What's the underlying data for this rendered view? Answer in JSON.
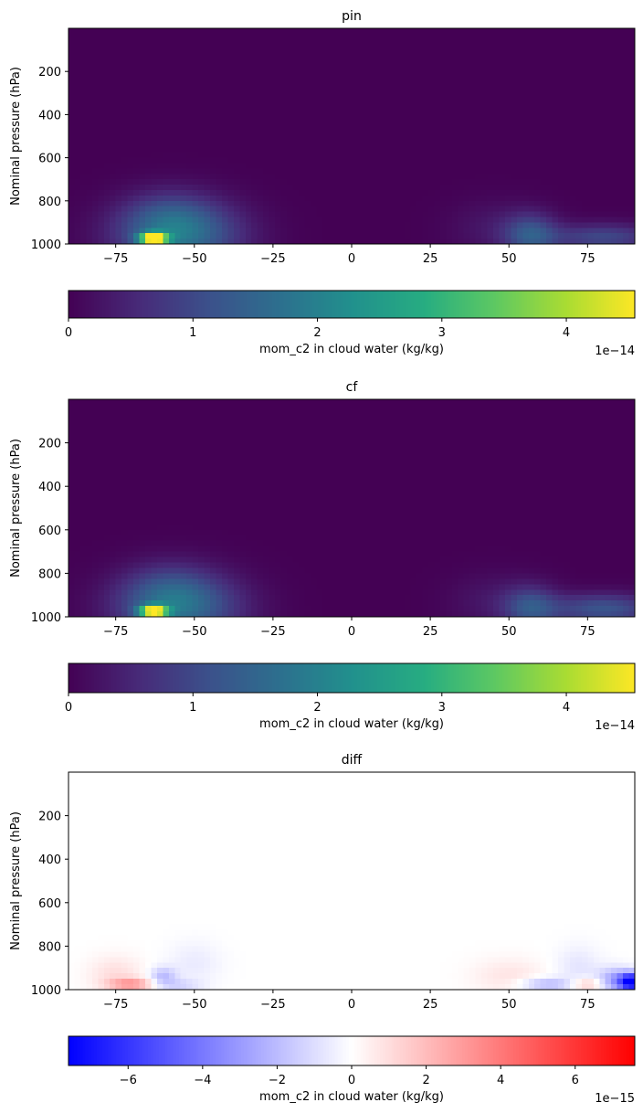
{
  "chart_data": [
    {
      "type": "heatmap",
      "title": "pin",
      "ylabel": "Nominal pressure (hPa)",
      "xlabel": "",
      "x_ticks": [
        "−75",
        "−50",
        "−25",
        "0",
        "25",
        "50",
        "75"
      ],
      "x_tick_values": [
        -75,
        -50,
        -25,
        0,
        25,
        50,
        75
      ],
      "y_ticks": [
        "200",
        "400",
        "600",
        "800",
        "1000"
      ],
      "y_tick_values": [
        200,
        400,
        600,
        800,
        1000
      ],
      "xlim": [
        -90,
        90
      ],
      "ylim": [
        1000,
        0
      ],
      "colormap": "viridis",
      "colorbar": {
        "label": "mom_c2 in cloud water (kg/kg)",
        "ticks": [
          "0",
          "1",
          "2",
          "3",
          "4"
        ],
        "tick_values": [
          0,
          1,
          2,
          3,
          4
        ],
        "range": [
          0,
          4.55
        ],
        "offset_text": "1e−14"
      },
      "hotspots": [
        {
          "lat": -55,
          "p": 960,
          "value": 1.6,
          "lat_spread": 14,
          "p_spread": 110
        },
        {
          "lat": -63,
          "p": 975,
          "value": 4.5,
          "lat_spread": 3,
          "p_spread": 18
        },
        {
          "lat": -58,
          "p": 880,
          "value": 0.6,
          "lat_spread": 10,
          "p_spread": 90
        },
        {
          "lat": 57,
          "p": 960,
          "value": 1.2,
          "lat_spread": 6,
          "p_spread": 70
        },
        {
          "lat": 80,
          "p": 970,
          "value": 1.0,
          "lat_spread": 12,
          "p_spread": 45
        },
        {
          "lat": 45,
          "p": 930,
          "value": 0.3,
          "lat_spread": 10,
          "p_spread": 90
        }
      ]
    },
    {
      "type": "heatmap",
      "title": "cf",
      "ylabel": "Nominal pressure (hPa)",
      "xlabel": "",
      "x_ticks": [
        "−75",
        "−50",
        "−25",
        "0",
        "25",
        "50",
        "75"
      ],
      "x_tick_values": [
        -75,
        -50,
        -25,
        0,
        25,
        50,
        75
      ],
      "y_ticks": [
        "200",
        "400",
        "600",
        "800",
        "1000"
      ],
      "y_tick_values": [
        200,
        400,
        600,
        800,
        1000
      ],
      "xlim": [
        -90,
        90
      ],
      "ylim": [
        1000,
        0
      ],
      "colormap": "viridis",
      "colorbar": {
        "label": "mom_c2 in cloud water (kg/kg)",
        "ticks": [
          "0",
          "1",
          "2",
          "3",
          "4"
        ],
        "tick_values": [
          0,
          1,
          2,
          3,
          4
        ],
        "range": [
          0,
          4.55
        ],
        "offset_text": "1e−14"
      },
      "hotspots": [
        {
          "lat": -55,
          "p": 960,
          "value": 1.5,
          "lat_spread": 14,
          "p_spread": 110
        },
        {
          "lat": -63,
          "p": 975,
          "value": 4.3,
          "lat_spread": 3,
          "p_spread": 18
        },
        {
          "lat": -58,
          "p": 880,
          "value": 0.6,
          "lat_spread": 10,
          "p_spread": 90
        },
        {
          "lat": 57,
          "p": 960,
          "value": 1.1,
          "lat_spread": 6,
          "p_spread": 70
        },
        {
          "lat": 80,
          "p": 965,
          "value": 1.2,
          "lat_spread": 12,
          "p_spread": 50
        },
        {
          "lat": 45,
          "p": 930,
          "value": 0.3,
          "lat_spread": 10,
          "p_spread": 90
        }
      ]
    },
    {
      "type": "heatmap",
      "title": "diff",
      "ylabel": "Nominal pressure (hPa)",
      "xlabel": "",
      "x_ticks": [
        "−75",
        "−50",
        "−25",
        "0",
        "25",
        "50",
        "75"
      ],
      "x_tick_values": [
        -75,
        -50,
        -25,
        0,
        25,
        50,
        75
      ],
      "y_ticks": [
        "200",
        "400",
        "600",
        "800",
        "1000"
      ],
      "y_tick_values": [
        200,
        400,
        600,
        800,
        1000
      ],
      "xlim": [
        -90,
        90
      ],
      "ylim": [
        1000,
        0
      ],
      "colormap": "bwr",
      "colorbar": {
        "label": "mom_c2 in cloud water (kg/kg)",
        "ticks": [
          "−6",
          "−4",
          "−2",
          "0",
          "2",
          "4",
          "6"
        ],
        "tick_values": [
          -6,
          -4,
          -2,
          0,
          2,
          4,
          6
        ],
        "range": [
          -7.6,
          7.6
        ],
        "offset_text": "1e−15"
      },
      "hotspots": [
        {
          "lat": -70,
          "p": 975,
          "value": 3.0,
          "lat_spread": 5,
          "p_spread": 18
        },
        {
          "lat": -75,
          "p": 930,
          "value": 1.0,
          "lat_spread": 6,
          "p_spread": 60
        },
        {
          "lat": -60,
          "p": 940,
          "value": -2.0,
          "lat_spread": 3,
          "p_spread": 30
        },
        {
          "lat": -55,
          "p": 980,
          "value": -1.2,
          "lat_spread": 5,
          "p_spread": 18
        },
        {
          "lat": -50,
          "p": 880,
          "value": -0.6,
          "lat_spread": 6,
          "p_spread": 70
        },
        {
          "lat": 50,
          "p": 940,
          "value": 0.8,
          "lat_spread": 8,
          "p_spread": 60
        },
        {
          "lat": 62,
          "p": 975,
          "value": -2.2,
          "lat_spread": 6,
          "p_spread": 20
        },
        {
          "lat": 75,
          "p": 975,
          "value": 2.0,
          "lat_spread": 4,
          "p_spread": 20
        },
        {
          "lat": 72,
          "p": 900,
          "value": -0.8,
          "lat_spread": 5,
          "p_spread": 70
        },
        {
          "lat": 89,
          "p": 965,
          "value": -7.5,
          "lat_spread": 2.5,
          "p_spread": 28
        },
        {
          "lat": 84,
          "p": 960,
          "value": -3.0,
          "lat_spread": 4,
          "p_spread": 40
        }
      ]
    }
  ]
}
